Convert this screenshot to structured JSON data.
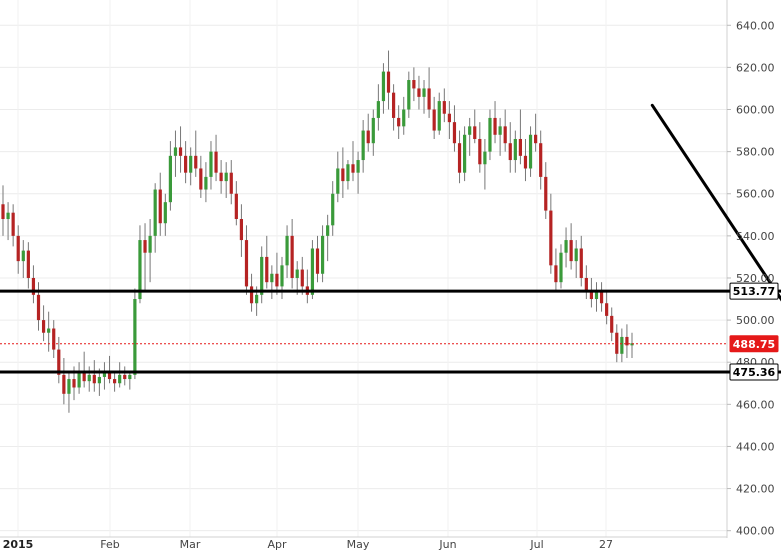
{
  "chart_data": {
    "type": "candlestick",
    "x_tick_labels": [
      "2015",
      "Feb",
      "Mar",
      "Apr",
      "May",
      "Jun",
      "Jul",
      "27"
    ],
    "y_ticks": [
      400,
      420,
      440,
      460,
      480,
      500,
      520,
      540,
      560,
      580,
      600,
      620,
      640
    ],
    "y_tick_labels": [
      "400.00",
      "420.00",
      "440.00",
      "460.00",
      "480.00",
      "500.00",
      "520.00",
      "540.00",
      "560.00",
      "580.00",
      "600.00",
      "620.00",
      "640.00"
    ],
    "ylim": [
      397,
      652
    ],
    "grid": true,
    "colors": {
      "up": "#3a9a3a",
      "down": "#b52323",
      "wick": "#777777",
      "lines": "#000000",
      "current": "#e51919"
    },
    "levels": [
      {
        "value": 513.77,
        "label": "513.77",
        "style": "solid"
      },
      {
        "value": 475.36,
        "label": "475.36",
        "style": "solid"
      },
      {
        "value": 488.75,
        "label": "488.75",
        "style": "dotted-current"
      }
    ],
    "trendline": {
      "from": {
        "date_index": 128,
        "price": 602
      },
      "to": {
        "date_index": 165,
        "price": 468
      }
    },
    "candles": [
      {
        "o": 555,
        "h": 564,
        "l": 540,
        "c": 548
      },
      {
        "o": 548,
        "h": 556,
        "l": 538,
        "c": 551
      },
      {
        "o": 551,
        "h": 555,
        "l": 535,
        "c": 540
      },
      {
        "o": 540,
        "h": 545,
        "l": 522,
        "c": 528
      },
      {
        "o": 528,
        "h": 538,
        "l": 520,
        "c": 533
      },
      {
        "o": 533,
        "h": 537,
        "l": 515,
        "c": 520
      },
      {
        "o": 520,
        "h": 526,
        "l": 508,
        "c": 512
      },
      {
        "o": 512,
        "h": 518,
        "l": 495,
        "c": 500
      },
      {
        "o": 500,
        "h": 507,
        "l": 490,
        "c": 494
      },
      {
        "o": 494,
        "h": 504,
        "l": 485,
        "c": 496
      },
      {
        "o": 496,
        "h": 500,
        "l": 482,
        "c": 486
      },
      {
        "o": 486,
        "h": 492,
        "l": 470,
        "c": 474
      },
      {
        "o": 474,
        "h": 482,
        "l": 460,
        "c": 465
      },
      {
        "o": 465,
        "h": 476,
        "l": 456,
        "c": 472
      },
      {
        "o": 472,
        "h": 478,
        "l": 462,
        "c": 468
      },
      {
        "o": 468,
        "h": 480,
        "l": 465,
        "c": 475
      },
      {
        "o": 475,
        "h": 485,
        "l": 468,
        "c": 471
      },
      {
        "o": 471,
        "h": 478,
        "l": 466,
        "c": 474
      },
      {
        "o": 474,
        "h": 481,
        "l": 466,
        "c": 470
      },
      {
        "o": 470,
        "h": 477,
        "l": 464,
        "c": 473
      },
      {
        "o": 473,
        "h": 480,
        "l": 467,
        "c": 475
      },
      {
        "o": 475,
        "h": 483,
        "l": 470,
        "c": 472
      },
      {
        "o": 472,
        "h": 476,
        "l": 466,
        "c": 470
      },
      {
        "o": 470,
        "h": 480,
        "l": 468,
        "c": 474
      },
      {
        "o": 474,
        "h": 478,
        "l": 469,
        "c": 472
      },
      {
        "o": 472,
        "h": 476,
        "l": 467,
        "c": 474
      },
      {
        "o": 474,
        "h": 515,
        "l": 472,
        "c": 510
      },
      {
        "o": 510,
        "h": 545,
        "l": 508,
        "c": 538
      },
      {
        "o": 538,
        "h": 546,
        "l": 514,
        "c": 532
      },
      {
        "o": 532,
        "h": 548,
        "l": 518,
        "c": 540
      },
      {
        "o": 540,
        "h": 565,
        "l": 532,
        "c": 562
      },
      {
        "o": 562,
        "h": 570,
        "l": 540,
        "c": 546
      },
      {
        "o": 546,
        "h": 560,
        "l": 540,
        "c": 556
      },
      {
        "o": 556,
        "h": 585,
        "l": 552,
        "c": 578
      },
      {
        "o": 578,
        "h": 590,
        "l": 568,
        "c": 582
      },
      {
        "o": 582,
        "h": 592,
        "l": 570,
        "c": 578
      },
      {
        "o": 578,
        "h": 585,
        "l": 565,
        "c": 570
      },
      {
        "o": 570,
        "h": 582,
        "l": 564,
        "c": 578
      },
      {
        "o": 578,
        "h": 590,
        "l": 568,
        "c": 572
      },
      {
        "o": 572,
        "h": 578,
        "l": 558,
        "c": 562
      },
      {
        "o": 562,
        "h": 575,
        "l": 556,
        "c": 568
      },
      {
        "o": 568,
        "h": 585,
        "l": 562,
        "c": 580
      },
      {
        "o": 580,
        "h": 588,
        "l": 566,
        "c": 570
      },
      {
        "o": 570,
        "h": 576,
        "l": 560,
        "c": 566
      },
      {
        "o": 566,
        "h": 575,
        "l": 558,
        "c": 570
      },
      {
        "o": 570,
        "h": 576,
        "l": 555,
        "c": 560
      },
      {
        "o": 560,
        "h": 566,
        "l": 545,
        "c": 548
      },
      {
        "o": 548,
        "h": 555,
        "l": 530,
        "c": 538
      },
      {
        "o": 538,
        "h": 545,
        "l": 512,
        "c": 516
      },
      {
        "o": 516,
        "h": 522,
        "l": 504,
        "c": 508
      },
      {
        "o": 508,
        "h": 516,
        "l": 502,
        "c": 512
      },
      {
        "o": 512,
        "h": 535,
        "l": 508,
        "c": 530
      },
      {
        "o": 530,
        "h": 540,
        "l": 515,
        "c": 518
      },
      {
        "o": 518,
        "h": 526,
        "l": 510,
        "c": 522
      },
      {
        "o": 522,
        "h": 532,
        "l": 512,
        "c": 516
      },
      {
        "o": 516,
        "h": 530,
        "l": 510,
        "c": 526
      },
      {
        "o": 526,
        "h": 545,
        "l": 520,
        "c": 540
      },
      {
        "o": 540,
        "h": 548,
        "l": 515,
        "c": 520
      },
      {
        "o": 520,
        "h": 528,
        "l": 512,
        "c": 524
      },
      {
        "o": 524,
        "h": 530,
        "l": 512,
        "c": 516
      },
      {
        "o": 516,
        "h": 524,
        "l": 508,
        "c": 512
      },
      {
        "o": 512,
        "h": 538,
        "l": 510,
        "c": 534
      },
      {
        "o": 534,
        "h": 540,
        "l": 518,
        "c": 522
      },
      {
        "o": 522,
        "h": 545,
        "l": 518,
        "c": 540
      },
      {
        "o": 540,
        "h": 550,
        "l": 528,
        "c": 545
      },
      {
        "o": 545,
        "h": 566,
        "l": 540,
        "c": 560
      },
      {
        "o": 560,
        "h": 580,
        "l": 556,
        "c": 572
      },
      {
        "o": 572,
        "h": 582,
        "l": 558,
        "c": 566
      },
      {
        "o": 566,
        "h": 576,
        "l": 562,
        "c": 574
      },
      {
        "o": 574,
        "h": 585,
        "l": 566,
        "c": 570
      },
      {
        "o": 570,
        "h": 580,
        "l": 560,
        "c": 576
      },
      {
        "o": 576,
        "h": 595,
        "l": 570,
        "c": 590
      },
      {
        "o": 590,
        "h": 598,
        "l": 580,
        "c": 584
      },
      {
        "o": 584,
        "h": 600,
        "l": 578,
        "c": 596
      },
      {
        "o": 596,
        "h": 612,
        "l": 590,
        "c": 604
      },
      {
        "o": 604,
        "h": 622,
        "l": 598,
        "c": 618
      },
      {
        "o": 618,
        "h": 628,
        "l": 600,
        "c": 608
      },
      {
        "o": 608,
        "h": 612,
        "l": 590,
        "c": 596
      },
      {
        "o": 596,
        "h": 602,
        "l": 586,
        "c": 592
      },
      {
        "o": 592,
        "h": 606,
        "l": 588,
        "c": 600
      },
      {
        "o": 600,
        "h": 618,
        "l": 596,
        "c": 614
      },
      {
        "o": 614,
        "h": 620,
        "l": 604,
        "c": 610
      },
      {
        "o": 610,
        "h": 616,
        "l": 600,
        "c": 606
      },
      {
        "o": 606,
        "h": 614,
        "l": 598,
        "c": 610
      },
      {
        "o": 610,
        "h": 620,
        "l": 596,
        "c": 600
      },
      {
        "o": 600,
        "h": 606,
        "l": 586,
        "c": 590
      },
      {
        "o": 590,
        "h": 608,
        "l": 588,
        "c": 604
      },
      {
        "o": 604,
        "h": 610,
        "l": 594,
        "c": 598
      },
      {
        "o": 598,
        "h": 604,
        "l": 586,
        "c": 594
      },
      {
        "o": 594,
        "h": 602,
        "l": 580,
        "c": 584
      },
      {
        "o": 584,
        "h": 590,
        "l": 565,
        "c": 570
      },
      {
        "o": 570,
        "h": 592,
        "l": 566,
        "c": 588
      },
      {
        "o": 588,
        "h": 596,
        "l": 578,
        "c": 592
      },
      {
        "o": 592,
        "h": 600,
        "l": 584,
        "c": 586
      },
      {
        "o": 586,
        "h": 594,
        "l": 570,
        "c": 574
      },
      {
        "o": 574,
        "h": 586,
        "l": 562,
        "c": 580
      },
      {
        "o": 580,
        "h": 600,
        "l": 576,
        "c": 596
      },
      {
        "o": 596,
        "h": 604,
        "l": 584,
        "c": 588
      },
      {
        "o": 588,
        "h": 596,
        "l": 578,
        "c": 592
      },
      {
        "o": 592,
        "h": 600,
        "l": 580,
        "c": 584
      },
      {
        "o": 584,
        "h": 594,
        "l": 570,
        "c": 576
      },
      {
        "o": 576,
        "h": 590,
        "l": 570,
        "c": 586
      },
      {
        "o": 586,
        "h": 600,
        "l": 574,
        "c": 578
      },
      {
        "o": 578,
        "h": 586,
        "l": 566,
        "c": 572
      },
      {
        "o": 572,
        "h": 592,
        "l": 568,
        "c": 588
      },
      {
        "o": 588,
        "h": 598,
        "l": 580,
        "c": 584
      },
      {
        "o": 584,
        "h": 590,
        "l": 562,
        "c": 568
      },
      {
        "o": 568,
        "h": 575,
        "l": 548,
        "c": 552
      },
      {
        "o": 552,
        "h": 560,
        "l": 522,
        "c": 526
      },
      {
        "o": 526,
        "h": 534,
        "l": 514,
        "c": 518
      },
      {
        "o": 518,
        "h": 536,
        "l": 515,
        "c": 532
      },
      {
        "o": 532,
        "h": 544,
        "l": 525,
        "c": 538
      },
      {
        "o": 538,
        "h": 546,
        "l": 524,
        "c": 528
      },
      {
        "o": 528,
        "h": 538,
        "l": 520,
        "c": 534
      },
      {
        "o": 534,
        "h": 540,
        "l": 516,
        "c": 520
      },
      {
        "o": 520,
        "h": 526,
        "l": 510,
        "c": 514
      },
      {
        "o": 514,
        "h": 520,
        "l": 506,
        "c": 510
      },
      {
        "o": 510,
        "h": 518,
        "l": 504,
        "c": 514
      },
      {
        "o": 514,
        "h": 518,
        "l": 504,
        "c": 508
      },
      {
        "o": 508,
        "h": 514,
        "l": 498,
        "c": 502
      },
      {
        "o": 502,
        "h": 506,
        "l": 490,
        "c": 494
      },
      {
        "o": 494,
        "h": 498,
        "l": 480,
        "c": 484
      },
      {
        "o": 484,
        "h": 496,
        "l": 480,
        "c": 492
      },
      {
        "o": 492,
        "h": 498,
        "l": 482,
        "c": 488
      },
      {
        "o": 488,
        "h": 494,
        "l": 482,
        "c": 489
      }
    ]
  }
}
